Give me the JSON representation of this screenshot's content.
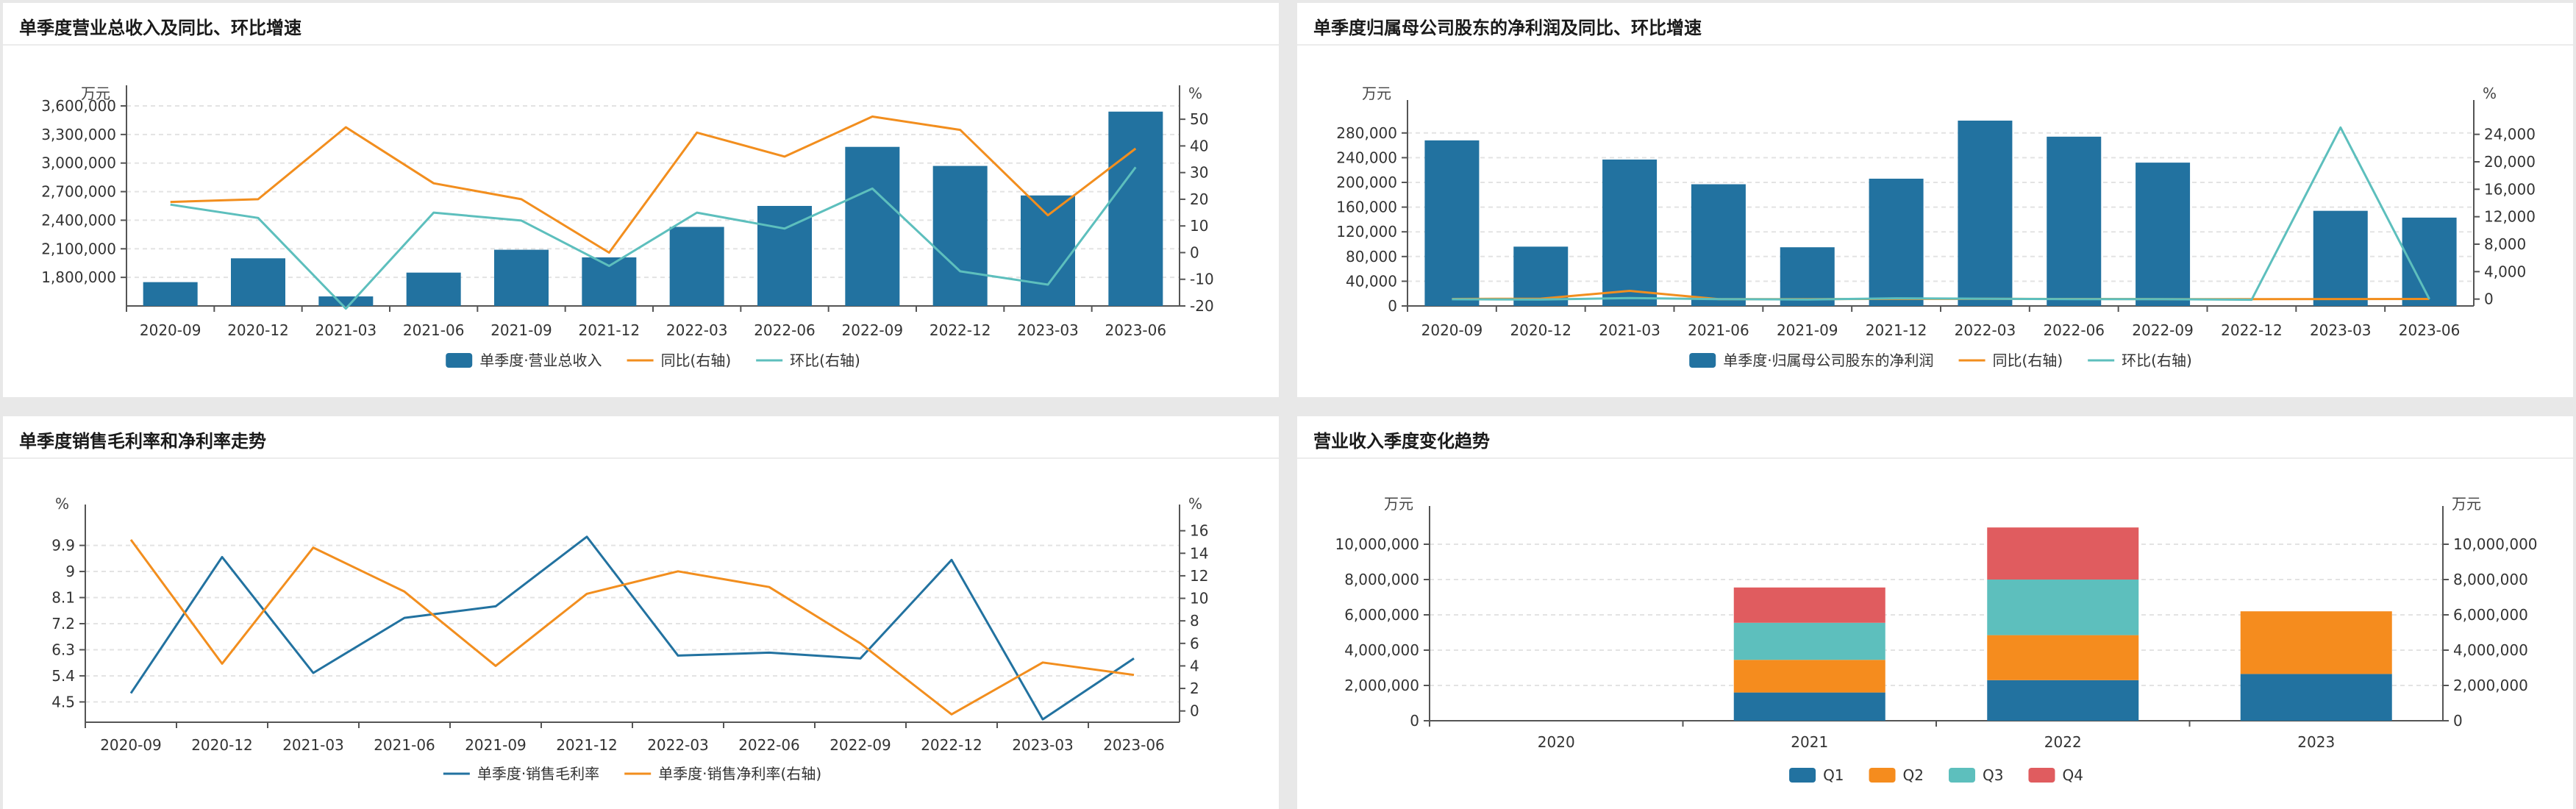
{
  "colors": {
    "bar": "#2272a0",
    "line_orange": "#f28e1e",
    "line_teal": "#5dbfbd",
    "q1": "#2272a0",
    "q2": "#f58c1e",
    "q3": "#5dbfbd",
    "q4": "#e05c5f"
  },
  "charts": [
    {
      "title": "单季度营业总收入及同比、环比增速",
      "chart_data": {
        "type": "bar",
        "categories": [
          "2020-09",
          "2020-12",
          "2021-03",
          "2021-06",
          "2021-09",
          "2021-12",
          "2022-03",
          "2022-06",
          "2022-09",
          "2022-12",
          "2023-03",
          "2023-06"
        ],
        "left_unit": "万元",
        "right_unit": "%",
        "left_ylim": [
          1500000,
          3600000
        ],
        "left_ticks": [
          1800000,
          2100000,
          2400000,
          2700000,
          3000000,
          3300000,
          3600000
        ],
        "left_tick_labels": [
          "1,800,000",
          "2,100,000",
          "2,400,000",
          "2,700,000",
          "3,000,000",
          "3,300,000",
          "3,600,000"
        ],
        "right_ylim": [
          -20,
          55
        ],
        "right_ticks": [
          -20,
          -10,
          0,
          10,
          20,
          30,
          40,
          50
        ],
        "right_tick_labels": [
          "-20",
          "-10",
          "0",
          "10",
          "20",
          "30",
          "40",
          "50"
        ],
        "series": [
          {
            "name": "单季度·营业总收入",
            "kind": "bar",
            "axis": "left",
            "color": "#2272a0",
            "values": [
              1750000,
              2000000,
              1600000,
              1850000,
              2090000,
              2010000,
              2330000,
              2550000,
              3170000,
              2970000,
              2660000,
              3540000
            ]
          },
          {
            "name": "同比(右轴)",
            "kind": "line",
            "axis": "right",
            "color": "#f28e1e",
            "values": [
              19,
              20,
              47,
              26,
              20,
              0,
              45,
              36,
              51,
              46,
              14,
              39
            ]
          },
          {
            "name": "环比(右轴)",
            "kind": "line",
            "axis": "right",
            "color": "#5dbfbd",
            "values": [
              18,
              13,
              -21,
              15,
              12,
              -5,
              15,
              9,
              24,
              -7,
              -12,
              32
            ]
          }
        ]
      }
    },
    {
      "title": "单季度归属母公司股东的净利润及同比、环比增速",
      "chart_data": {
        "type": "bar",
        "categories": [
          "2020-09",
          "2020-12",
          "2021-03",
          "2021-06",
          "2021-09",
          "2021-12",
          "2022-03",
          "2022-06",
          "2022-09",
          "2022-12",
          "2023-03",
          "2023-06"
        ],
        "left_unit": "万元",
        "right_unit": "%",
        "left_ylim": [
          0,
          300000
        ],
        "left_ticks": [
          0,
          40000,
          80000,
          120000,
          160000,
          200000,
          240000,
          280000
        ],
        "left_tick_labels": [
          "0",
          "40,000",
          "80,000",
          "120,000",
          "160,000",
          "200,000",
          "240,000",
          "280,000"
        ],
        "right_ylim": [
          -1000,
          26000
        ],
        "right_ticks": [
          0,
          4000,
          8000,
          12000,
          16000,
          20000,
          24000
        ],
        "right_tick_labels": [
          "0",
          "4,000",
          "8,000",
          "12,000",
          "16,000",
          "20,000",
          "24,000"
        ],
        "series": [
          {
            "name": "单季度·归属母公司股东的净利润",
            "kind": "bar",
            "axis": "left",
            "color": "#2272a0",
            "values": [
              268000,
              96000,
              237000,
              197000,
              95000,
              206000,
              300000,
              274000,
              232000,
              0,
              154000,
              143000
            ]
          },
          {
            "name": "同比(右轴)",
            "kind": "line",
            "axis": "right",
            "color": "#f28e1e",
            "values": [
              20,
              60,
              1200,
              0,
              -10,
              30,
              40,
              20,
              0,
              0,
              10,
              20
            ]
          },
          {
            "name": "环比(右轴)",
            "kind": "line",
            "axis": "right",
            "color": "#5dbfbd",
            "values": [
              -30,
              -64,
              147,
              -17,
              -52,
              117,
              46,
              -9,
              -15,
              -100,
              25000,
              -7
            ]
          }
        ]
      }
    },
    {
      "title": "单季度销售毛利率和净利率走势",
      "chart_data": {
        "type": "line",
        "categories": [
          "2020-09",
          "2020-12",
          "2021-03",
          "2021-06",
          "2021-09",
          "2021-12",
          "2022-03",
          "2022-06",
          "2022-09",
          "2022-12",
          "2023-03",
          "2023-06"
        ],
        "left_unit": "%",
        "right_unit": "%",
        "left_ylim": [
          3.8,
          10.6
        ],
        "left_ticks": [
          4.5,
          5.4,
          6.3,
          7.2,
          8.1,
          9,
          9.9
        ],
        "left_tick_labels": [
          "4.5",
          "5.4",
          "6.3",
          "7.2",
          "8.1",
          "9",
          "9.9"
        ],
        "right_ylim": [
          -1,
          16.5
        ],
        "right_ticks": [
          0,
          2,
          4,
          6,
          8,
          10,
          12,
          14,
          16
        ],
        "right_tick_labels": [
          "0",
          "2",
          "4",
          "6",
          "8",
          "10",
          "12",
          "14",
          "16"
        ],
        "series": [
          {
            "name": "单季度·销售毛利率",
            "kind": "line",
            "axis": "left",
            "color": "#2272a0",
            "values": [
              4.8,
              9.5,
              5.5,
              7.4,
              7.8,
              10.2,
              6.1,
              6.2,
              6.0,
              9.4,
              3.9,
              6.0
            ]
          },
          {
            "name": "单季度·销售净利率(右轴)",
            "kind": "line",
            "axis": "right",
            "color": "#f28e1e",
            "values": [
              15.2,
              4.2,
              14.5,
              10.6,
              4.0,
              10.4,
              12.4,
              11.0,
              6.0,
              -0.3,
              4.3,
              3.2
            ]
          }
        ]
      }
    },
    {
      "title": "营业收入季度变化趋势",
      "chart_data": {
        "type": "bar",
        "stacked": true,
        "categories": [
          "2020",
          "2021",
          "2022",
          "2023"
        ],
        "left_unit": "万元",
        "right_unit": "万元",
        "left_ylim": [
          0,
          11000000
        ],
        "left_ticks": [
          0,
          2000000,
          4000000,
          6000000,
          8000000,
          10000000
        ],
        "left_tick_labels": [
          "0",
          "2,000,000",
          "4,000,000",
          "6,000,000",
          "8,000,000",
          "10,000,000"
        ],
        "right_ylim": [
          0,
          11000000
        ],
        "right_ticks": [
          0,
          2000000,
          4000000,
          6000000,
          8000000,
          10000000
        ],
        "right_tick_labels": [
          "0",
          "2,000,000",
          "4,000,000",
          "6,000,000",
          "8,000,000",
          "10,000,000"
        ],
        "series": [
          {
            "name": "Q1",
            "kind": "bar",
            "axis": "left",
            "color": "#2272a0",
            "values": [
              0,
              1600000,
              2300000,
              2650000
            ]
          },
          {
            "name": "Q2",
            "kind": "bar",
            "axis": "left",
            "color": "#f58c1e",
            "values": [
              0,
              1850000,
              2550000,
              3550000
            ]
          },
          {
            "name": "Q3",
            "kind": "bar",
            "axis": "left",
            "color": "#5dbfbd",
            "values": [
              0,
              2100000,
              3150000,
              0
            ]
          },
          {
            "name": "Q4",
            "kind": "bar",
            "axis": "left",
            "color": "#e05c5f",
            "values": [
              0,
              2000000,
              2950000,
              0
            ]
          }
        ]
      }
    }
  ]
}
